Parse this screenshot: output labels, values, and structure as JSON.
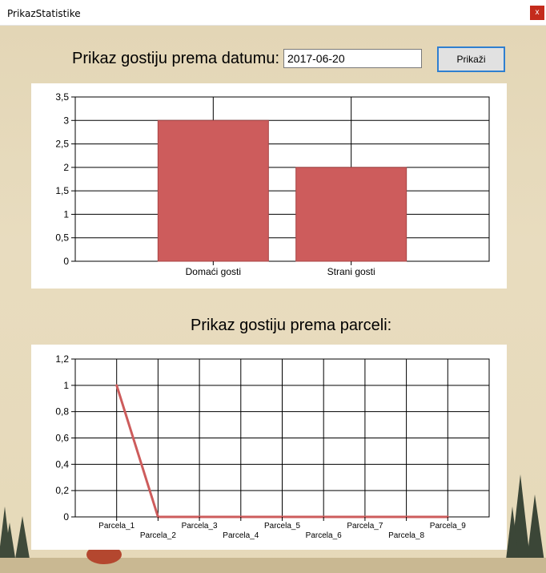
{
  "window": {
    "title": "PrikazStatistike",
    "close_glyph": "x"
  },
  "date_section": {
    "heading": "Prikaz gostiju prema datumu:",
    "date_value": "2017-06-20",
    "button_label": "Prikaži"
  },
  "parcel_section": {
    "heading": "Prikaz gostiju prema parceli:"
  },
  "chart_data": [
    {
      "type": "bar",
      "categories": [
        "Domaći gosti",
        "Strani gosti"
      ],
      "values": [
        3,
        2
      ],
      "ylim": [
        0,
        3.5
      ],
      "yticks": [
        "0",
        "0,5",
        "1",
        "1,5",
        "2",
        "2,5",
        "3",
        "3,5"
      ],
      "grid": true,
      "color": "#cd5c5c"
    },
    {
      "type": "line",
      "categories": [
        "Parcela_1",
        "Parcela_2",
        "Parcela_3",
        "Parcela_4",
        "Parcela_5",
        "Parcela_6",
        "Parcela_7",
        "Parcela_8",
        "Parcela_9"
      ],
      "values": [
        1,
        0,
        0,
        0,
        0,
        0,
        0,
        0,
        0
      ],
      "ylim": [
        0,
        1.2
      ],
      "yticks": [
        "0",
        "0,2",
        "0,4",
        "0,6",
        "0,8",
        "1",
        "1,2"
      ],
      "grid": true,
      "color": "#cd5c5c"
    }
  ]
}
